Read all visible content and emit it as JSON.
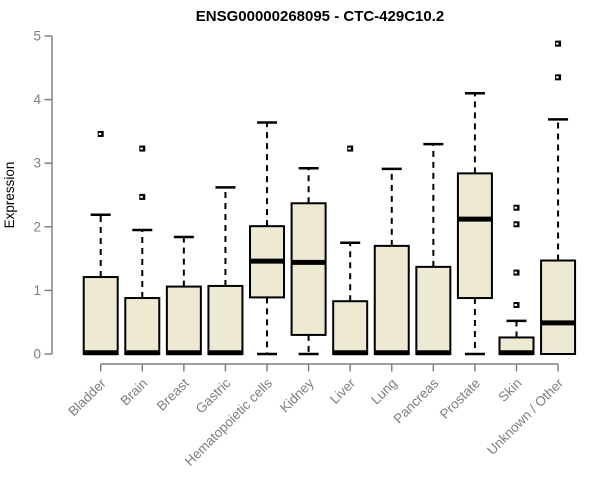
{
  "chart_data": {
    "type": "boxplot",
    "title": "ENSG00000268095 - CTC-429C10.2",
    "ylabel": "Expression",
    "xlabel": "",
    "ylim": [
      0,
      5
    ],
    "yticks": [
      0,
      1,
      2,
      3,
      4,
      5
    ],
    "grid": false,
    "legend": false,
    "categories": [
      "Bladder",
      "Brain",
      "Breast",
      "Gastric",
      "Hematopoietic cells",
      "Kidney",
      "Liver",
      "Lung",
      "Pancreas",
      "Prostate",
      "Skin",
      "Unknown / Other"
    ],
    "boxes": [
      {
        "category": "Bladder",
        "whisker_low": 0,
        "q1": 0,
        "median": 0.02,
        "q3": 1.21,
        "whisker_high": 2.19,
        "outliers": [
          3.46
        ]
      },
      {
        "category": "Brain",
        "whisker_low": 0,
        "q1": 0,
        "median": 0.02,
        "q3": 0.88,
        "whisker_high": 1.95,
        "outliers": [
          2.47,
          3.23
        ]
      },
      {
        "category": "Breast",
        "whisker_low": 0,
        "q1": 0,
        "median": 0.02,
        "q3": 1.06,
        "whisker_high": 1.84,
        "outliers": []
      },
      {
        "category": "Gastric",
        "whisker_low": 0,
        "q1": 0,
        "median": 0.02,
        "q3": 1.07,
        "whisker_high": 2.62,
        "outliers": []
      },
      {
        "category": "Hematopoietic cells",
        "whisker_low": 0,
        "q1": 0.89,
        "median": 1.46,
        "q3": 2.01,
        "whisker_high": 3.64,
        "outliers": []
      },
      {
        "category": "Kidney",
        "whisker_low": 0,
        "q1": 0.3,
        "median": 1.44,
        "q3": 2.37,
        "whisker_high": 2.92,
        "outliers": []
      },
      {
        "category": "Liver",
        "whisker_low": 0,
        "q1": 0,
        "median": 0.02,
        "q3": 0.83,
        "whisker_high": 1.75,
        "outliers": [
          3.23
        ]
      },
      {
        "category": "Lung",
        "whisker_low": 0,
        "q1": 0,
        "median": 0.02,
        "q3": 1.7,
        "whisker_high": 2.91,
        "outliers": []
      },
      {
        "category": "Pancreas",
        "whisker_low": 0,
        "q1": 0,
        "median": 0.02,
        "q3": 1.37,
        "whisker_high": 3.3,
        "outliers": []
      },
      {
        "category": "Prostate",
        "whisker_low": 0,
        "q1": 0.88,
        "median": 2.12,
        "q3": 2.84,
        "whisker_high": 4.1,
        "outliers": []
      },
      {
        "category": "Skin",
        "whisker_low": 0,
        "q1": 0,
        "median": 0.02,
        "q3": 0.26,
        "whisker_high": 0.52,
        "outliers": [
          0.77,
          1.28,
          2.04,
          2.3
        ]
      },
      {
        "category": "Unknown / Other",
        "whisker_low": 0,
        "q1": 0,
        "median": 0.49,
        "q3": 1.47,
        "whisker_high": 3.69,
        "outliers": [
          4.35,
          4.88
        ]
      }
    ],
    "colors": {
      "box_fill": "#EDE9D2",
      "box_stroke": "#000000",
      "median": "#000000",
      "whisker": "#000000",
      "outlier": "#000000",
      "axis": "#808080",
      "tick_label": "#7e7e7e",
      "axis_title": "#8f8f8f",
      "title": "#000000",
      "background": "#ffffff"
    }
  }
}
